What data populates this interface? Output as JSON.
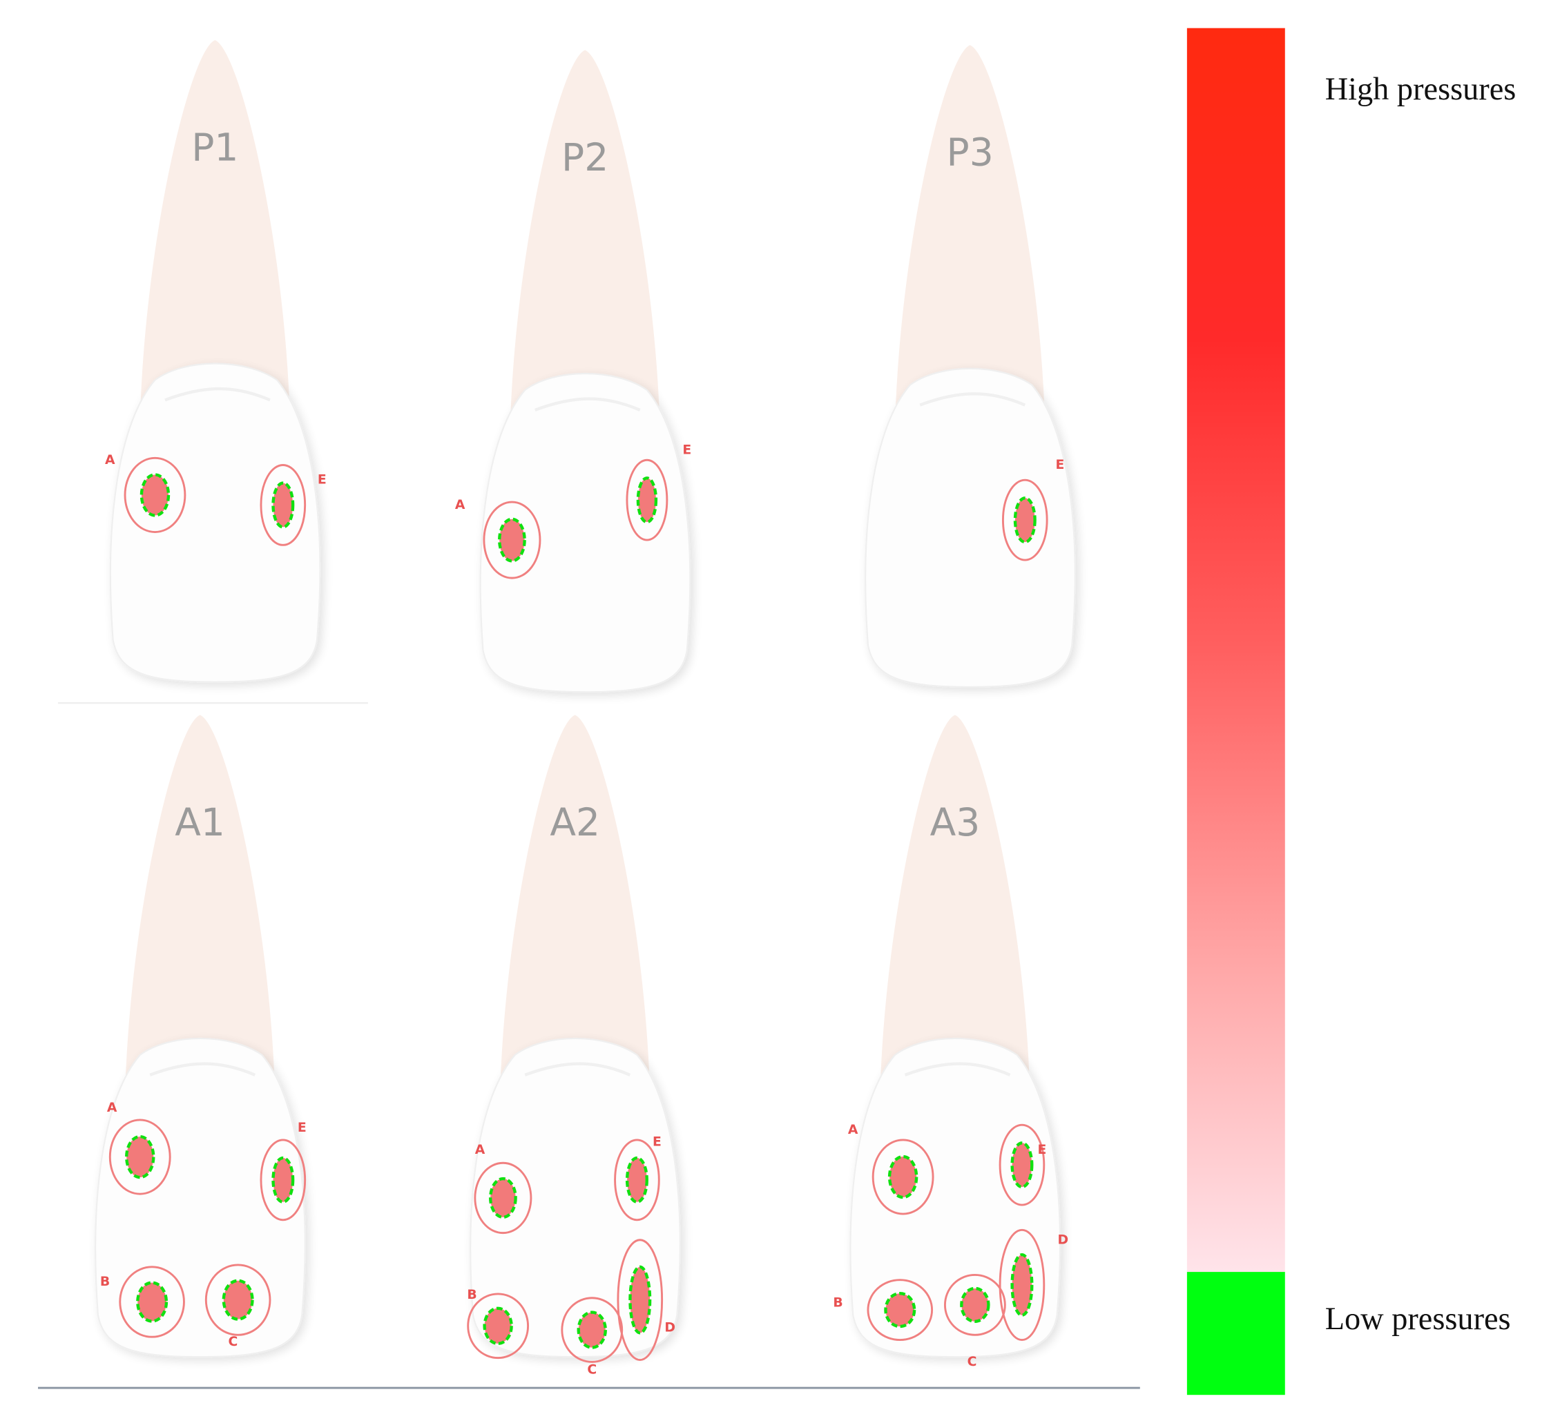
{
  "panels": [
    {
      "label": "P1",
      "regions": [
        "A",
        "E"
      ]
    },
    {
      "label": "P2",
      "regions": [
        "A",
        "E"
      ]
    },
    {
      "label": "P3",
      "regions": [
        "E"
      ]
    },
    {
      "label": "A1",
      "regions": [
        "A",
        "E",
        "B",
        "C"
      ]
    },
    {
      "label": "A2",
      "regions": [
        "A",
        "E",
        "B",
        "C",
        "D"
      ]
    },
    {
      "label": "A3",
      "regions": [
        "A",
        "E",
        "B",
        "C",
        "D"
      ]
    }
  ],
  "legend": {
    "high": "High pressures",
    "low": "Low pressures"
  }
}
